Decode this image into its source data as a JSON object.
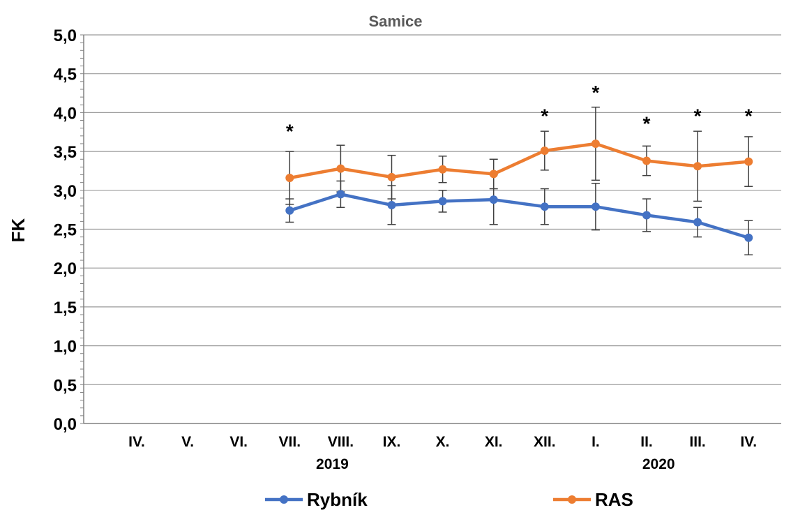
{
  "chart_data": {
    "type": "line",
    "title": "Samice",
    "ylabel": "FK",
    "xlabel": "",
    "ylim": [
      0,
      5
    ],
    "y_ticks": [
      "0,0",
      "0,5",
      "1,0",
      "1,5",
      "2,0",
      "2,5",
      "3,0",
      "3,5",
      "4,0",
      "4,5",
      "5,0"
    ],
    "categories": [
      "IV.",
      "V.",
      "VI.",
      "VII.",
      "VIII.",
      "IX.",
      "X.",
      "XI.",
      "XII.",
      "I.",
      "II.",
      "III.",
      "IV."
    ],
    "year_labels": [
      {
        "label": "2019",
        "category_index": 4
      },
      {
        "label": "2020",
        "category_index": 10.4
      }
    ],
    "grid": true,
    "legend_position": "bottom",
    "series": [
      {
        "name": "Rybník",
        "color": "#4472C4",
        "values": [
          null,
          null,
          null,
          2.74,
          2.95,
          2.81,
          2.86,
          2.88,
          2.79,
          2.79,
          2.68,
          2.59,
          2.39
        ],
        "errors": [
          null,
          null,
          null,
          0.15,
          0.17,
          0.25,
          0.14,
          0.32,
          0.23,
          0.3,
          0.21,
          0.19,
          0.22
        ]
      },
      {
        "name": "RAS",
        "color": "#ED7D31",
        "values": [
          null,
          null,
          null,
          3.16,
          3.28,
          3.17,
          3.27,
          3.21,
          3.51,
          3.6,
          3.38,
          3.31,
          3.37
        ],
        "errors": [
          null,
          null,
          null,
          0.34,
          0.3,
          0.28,
          0.17,
          0.19,
          0.25,
          0.47,
          0.19,
          0.45,
          0.32
        ]
      }
    ],
    "significance_marks": [
      {
        "category_index": 3,
        "label": "*",
        "y": 3.8
      },
      {
        "category_index": 8,
        "label": "*",
        "y": 4.0
      },
      {
        "category_index": 9,
        "label": "*",
        "y": 4.3
      },
      {
        "category_index": 10,
        "label": "*",
        "y": 3.9
      },
      {
        "category_index": 11,
        "label": "*",
        "y": 4.0
      },
      {
        "category_index": 12,
        "label": "*",
        "y": 4.0
      }
    ]
  }
}
